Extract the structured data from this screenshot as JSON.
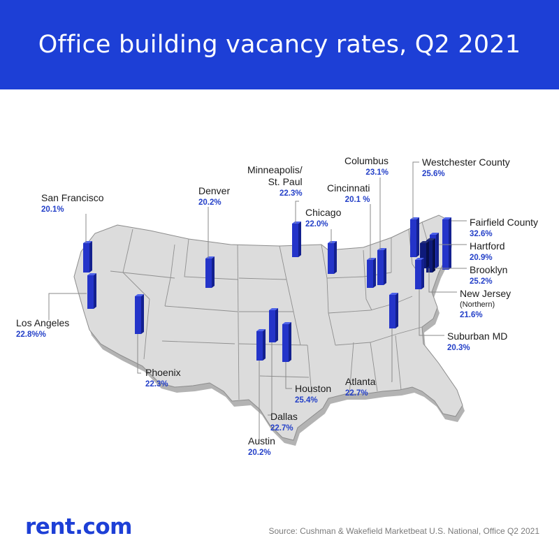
{
  "title": "Office building vacancy rates, Q2 2021",
  "brand": "rent.com",
  "source": "Source: Cushman & Wakefield Marketbeat U.S. National, Office Q2 2021",
  "colors": {
    "header": "#1d3fd6",
    "bar": "#2434c9",
    "bar_dark": "#0e1a7a",
    "map": "#d9d9d9",
    "map_side": "#a9a9a9",
    "value_text": "#2440c8"
  },
  "cities": [
    {
      "name": "San Francisco",
      "value": "20.1%"
    },
    {
      "name": "Los Angeles",
      "value": "22.8%%"
    },
    {
      "name": "Denver",
      "value": "20.2%"
    },
    {
      "name": "Phoenix",
      "value": "22.3%"
    },
    {
      "name": "Minneapolis/",
      "name2": "St. Paul",
      "value": "22.3%"
    },
    {
      "name": "Chicago",
      "value": "22.0%"
    },
    {
      "name": "Cincinnati",
      "value": "20.1 %"
    },
    {
      "name": "Columbus",
      "value": "23.1%"
    },
    {
      "name": "Westchester County",
      "value": "25.6%"
    },
    {
      "name": "Fairfield County",
      "value": "32.6%"
    },
    {
      "name": "Hartford",
      "value": "20.9%"
    },
    {
      "name": "Brooklyn",
      "value": "25.2%"
    },
    {
      "name": "New Jersey",
      "sub": "(Northern)",
      "value": "21.6%"
    },
    {
      "name": "Suburban MD",
      "value": "20.3%"
    },
    {
      "name": "Atlanta",
      "value": "22.7%"
    },
    {
      "name": "Houston",
      "value": "25.4%"
    },
    {
      "name": "Dallas",
      "value": "22.7%"
    },
    {
      "name": "Austin",
      "value": "20.2%"
    }
  ]
}
